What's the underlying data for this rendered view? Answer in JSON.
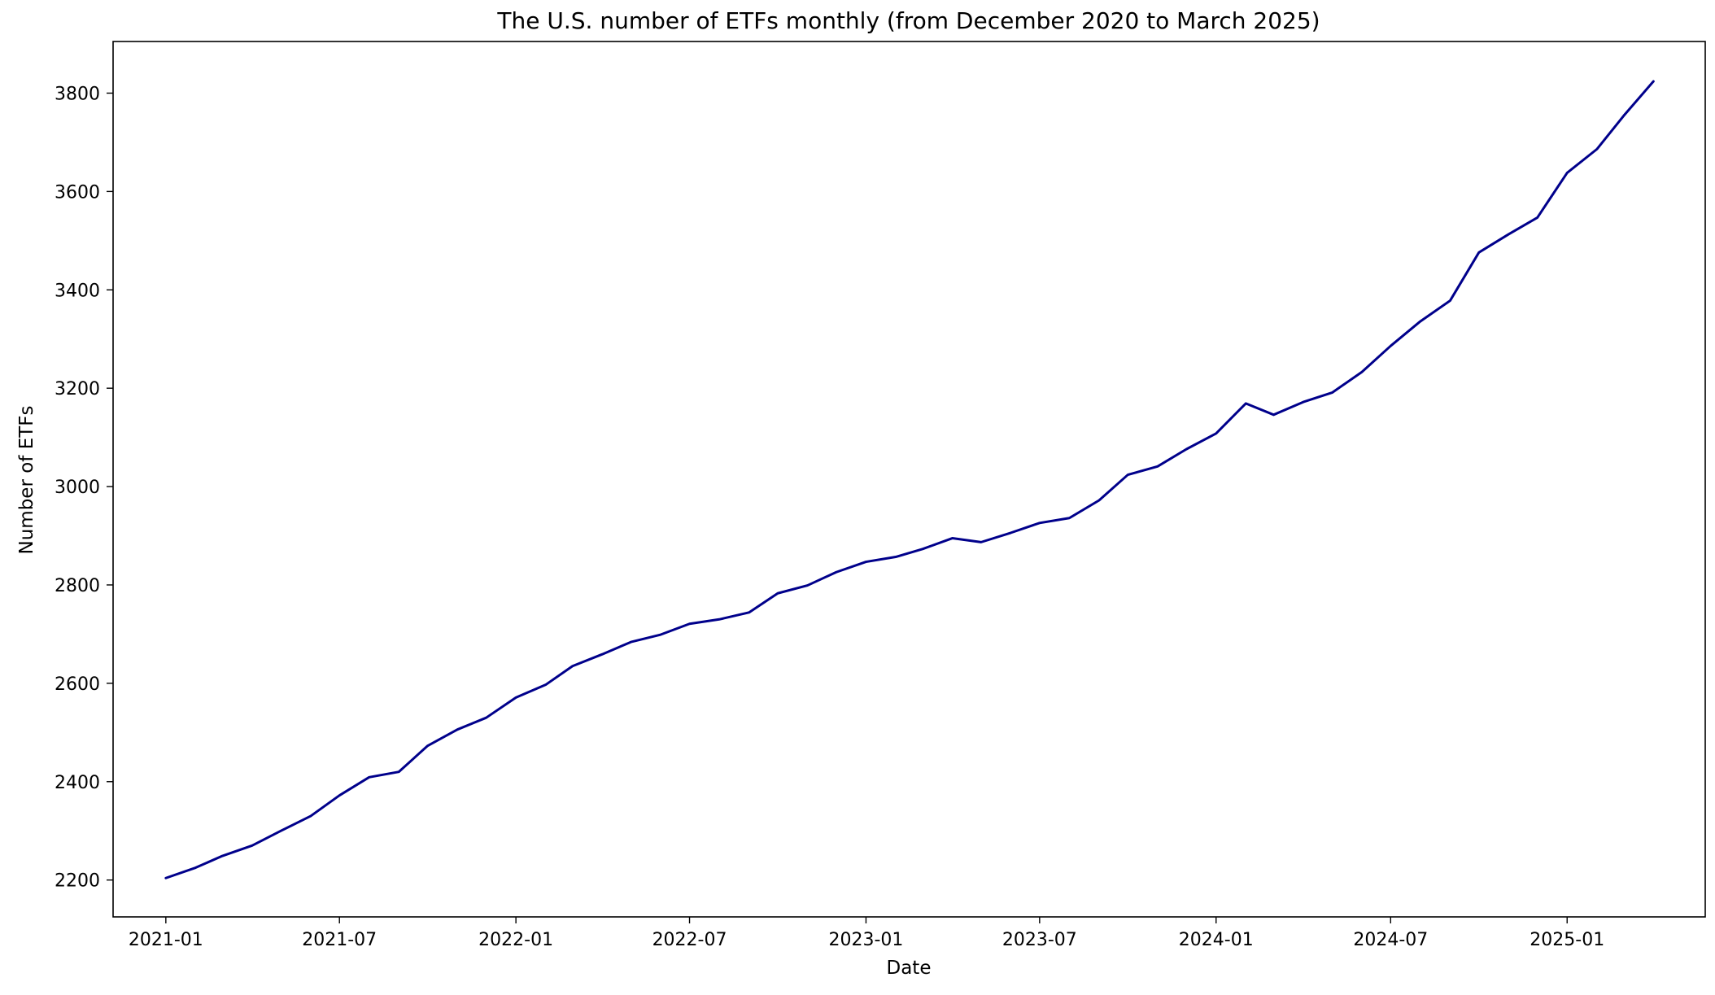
{
  "chart_data": {
    "type": "line",
    "title": "The U.S. number of ETFs monthly (from December 2020 to March 2025)",
    "xlabel": "Date",
    "ylabel": "Number of ETFs",
    "x_ticks": [
      "2021-01",
      "2021-07",
      "2022-01",
      "2022-07",
      "2023-01",
      "2023-07",
      "2024-01",
      "2024-07",
      "2025-01"
    ],
    "y_ticks": [
      2200,
      2400,
      2600,
      2800,
      3000,
      3200,
      3400,
      3600,
      3800
    ],
    "xlim": [
      "2020-11-07",
      "2025-05-25"
    ],
    "ylim": [
      2125,
      3905
    ],
    "grid": false,
    "line_color": "#00008b",
    "series": [
      {
        "x": [
          "2021-01-01",
          "2021-02-01",
          "2021-03-01",
          "2021-04-01",
          "2021-05-01",
          "2021-06-01",
          "2021-07-01",
          "2021-08-01",
          "2021-09-01",
          "2021-10-01",
          "2021-11-01",
          "2021-12-01",
          "2022-01-01",
          "2022-02-01",
          "2022-03-01",
          "2022-04-01",
          "2022-05-01",
          "2022-06-01",
          "2022-07-01",
          "2022-08-01",
          "2022-09-01",
          "2022-10-01",
          "2022-11-01",
          "2022-12-01",
          "2023-01-01",
          "2023-02-01",
          "2023-03-01",
          "2023-04-01",
          "2023-05-01",
          "2023-06-01",
          "2023-07-01",
          "2023-08-01",
          "2023-09-01",
          "2023-10-01",
          "2023-11-01",
          "2023-12-01",
          "2024-01-01",
          "2024-02-01",
          "2024-03-01",
          "2024-04-01",
          "2024-05-01",
          "2024-06-01",
          "2024-07-01",
          "2024-08-01",
          "2024-09-01",
          "2024-10-01",
          "2024-11-01",
          "2024-12-01",
          "2025-01-01",
          "2025-02-01",
          "2025-03-01",
          "2025-04-01"
        ],
        "values": [
          2204,
          2225,
          2249,
          2270,
          2300,
          2330,
          2372,
          2409,
          2420,
          2473,
          2506,
          2530,
          2571,
          2597,
          2635,
          2659,
          2684,
          2699,
          2721,
          2730,
          2744,
          2783,
          2799,
          2826,
          2847,
          2857,
          2873,
          2895,
          2887,
          2906,
          2926,
          2936,
          2972,
          3024,
          3041,
          3076,
          3108,
          3169,
          3146,
          3172,
          3191,
          3233,
          3286,
          3336,
          3378,
          3476,
          3513,
          3547,
          3638,
          3686,
          3754,
          3824
        ]
      }
    ]
  }
}
